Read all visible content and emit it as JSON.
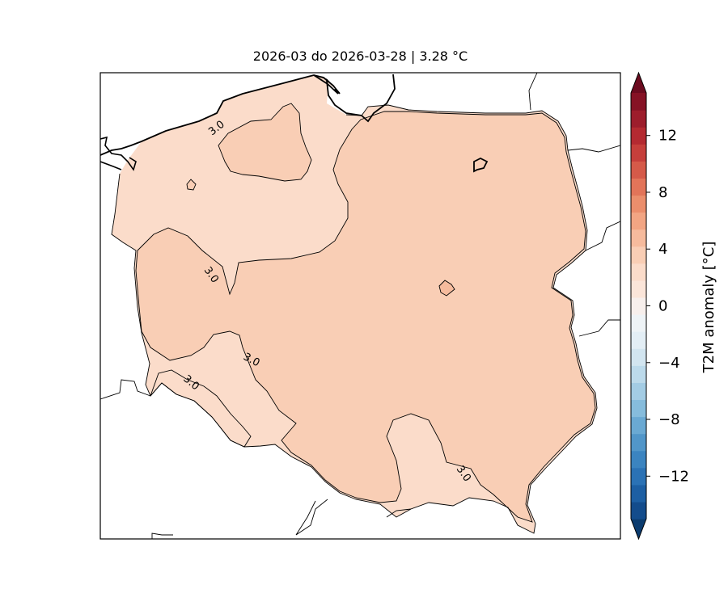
{
  "title": "2026-03 do 2026-03-28 | 3.28 °C",
  "map": {
    "region": "Poland",
    "variable": "T2M anomaly",
    "contour_level_label": "3.0",
    "fill_colors": {
      "low_band": "#fbdcca",
      "high_band": "#f9ceb5"
    }
  },
  "colorbar": {
    "label": "T2M anomaly [°C]",
    "ticks": [
      "12",
      "8",
      "4",
      "0",
      "−4",
      "−8",
      "−12"
    ],
    "range": [
      -15,
      15
    ],
    "extend": "both",
    "colors": [
      "#0b3c6f",
      "#134c8c",
      "#1d5fa3",
      "#2b72b5",
      "#3b84c0",
      "#5196c9",
      "#6aa9d3",
      "#86bcdc",
      "#a3cce4",
      "#bcdaeb",
      "#d2e5f0",
      "#e3eef5",
      "#eef3f6",
      "#f7efec",
      "#fbe5d9",
      "#fbdcca",
      "#f9ceb5",
      "#f6bb9d",
      "#f2a583",
      "#eb8e6c",
      "#e27459",
      "#d55a49",
      "#c63f3b",
      "#b42a31",
      "#9d1d2c",
      "#861225",
      "#6b0b1f"
    ]
  }
}
